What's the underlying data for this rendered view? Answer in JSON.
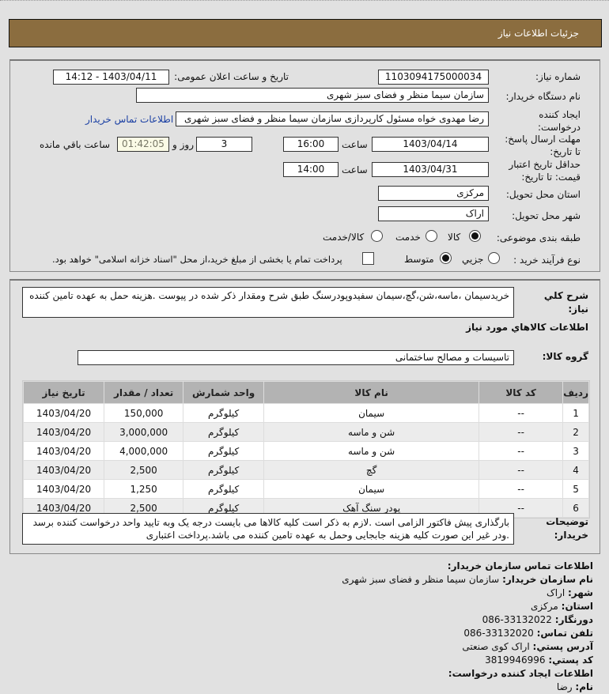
{
  "header": {
    "title": "جزئیات اطلاعات نیاز"
  },
  "form": {
    "need_number_label": "شماره نیاز:",
    "need_number": "1103094175000034",
    "announce_label": "تاریخ و ساعت اعلان عمومی:",
    "announce": "1403/04/11 - 14:12",
    "buyer_label": "نام دستگاه خریدار:",
    "buyer": "سازمان سیما منظر و فضای سبز شهری",
    "creator_label_1": "ایجاد کننده",
    "creator_label_2": "درخواست:",
    "creator": "رضا مهدوی خواه مسئول کارپردازی سازمان سیما منظر و فضای سبز شهری",
    "contact_link": "اطلاعات تماس خریدار",
    "deadline_label_1": "مهلت ارسال پاسخ:",
    "deadline_label_2": "تا تاریخ:",
    "deadline_date": "1403/04/14",
    "time_label": "ساعت",
    "deadline_time": "16:00",
    "days": "3",
    "days_label": "روز و",
    "remaining": "01:42:05",
    "remaining_label": "ساعت باقي مانده",
    "validity_label_1": "حداقل تاریخ اعتبار",
    "validity_label_2": "قیمت: تا تاریخ:",
    "validity_date": "1403/04/31",
    "validity_time": "14:00",
    "province_label": "استان محل تحویل:",
    "province": "مرکزی",
    "city_label": "شهر محل تحویل:",
    "city": "اراک",
    "category_label": "طبقه بندی موضوعی:",
    "category_options": [
      "کالا",
      "خدمت",
      "کالا/خدمت"
    ],
    "category_selected": "کالا",
    "process_label": "نوع فرآیند خرید :",
    "process_options": [
      "جزیي",
      "متوسط"
    ],
    "process_selected": "متوسط",
    "treasury_note": "پرداخت تمام یا بخشی از مبلغ خرید،از محل \"اسناد خزانه اسلامی\" خواهد بود.",
    "treasury_checked": false
  },
  "details": {
    "desc_label_1": "شرح کلي",
    "desc_label_2": "نیاز:",
    "desc": "خریدسیمان ،ماسه،شن،گچ،سیمان سفیدوپودرسنگ طبق شرح ومقدار ذکر شده در پیوست .هزینه حمل به عهده تامین کننده",
    "goods_title": "اطلاعات کالاهاي مورد نیاز",
    "group_label": "گروه کالا:",
    "group": "تاسیسات و مصالح ساختمانی",
    "table": {
      "headers": [
        "ردیف",
        "کد کالا",
        "نام کالا",
        "واحد شمارش",
        "تعداد / مقدار",
        "تاریخ نیاز"
      ],
      "rows": [
        [
          "1",
          "--",
          "سیمان",
          "کیلوگرم",
          "150,000",
          "1403/04/20"
        ],
        [
          "2",
          "--",
          "شن و ماسه",
          "کیلوگرم",
          "3,000,000",
          "1403/04/20"
        ],
        [
          "3",
          "--",
          "شن و ماسه",
          "کیلوگرم",
          "4,000,000",
          "1403/04/20"
        ],
        [
          "4",
          "--",
          "گچ",
          "کیلوگرم",
          "2,500",
          "1403/04/20"
        ],
        [
          "5",
          "--",
          "سیمان",
          "کیلوگرم",
          "1,250",
          "1403/04/20"
        ],
        [
          "6",
          "--",
          "پودر سنگ آهک",
          "کیلوگرم",
          "2,500",
          "1403/04/20"
        ]
      ]
    },
    "notes_label_1": "توضیحات",
    "notes_label_2": "خریدار:",
    "notes": "بارگذاری پیش فاکتور الزامی است .لازم به ذکر است کلیه کالاها می بایست درجه یک وبه تایید واحد درخواست کننده برسد .ودر غیر این صورت کلیه هزینه جابجایی وحمل به عهده تامین کننده می باشد.پرداخت اعتباری"
  },
  "contact": {
    "title": "اطلاعات تماس سازمان خریدار:",
    "lines": [
      {
        "k": "نام سازمان خریدار:",
        "v": "سازمان سیما منظر و فضای سبز شهری"
      },
      {
        "k": "شهر:",
        "v": "اراک"
      },
      {
        "k": "استان:",
        "v": "مرکزی"
      },
      {
        "k": "دورنگار:",
        "v": "33132022-086"
      },
      {
        "k": "تلفن تماس:",
        "v": "33132020-086"
      },
      {
        "k": "آدرس پستي:",
        "v": "اراک کوی صنعتی"
      },
      {
        "k": "کد پستي:",
        "v": "3819946996"
      }
    ],
    "creator_title": "اطلاعات ایجاد کننده درخواست:",
    "name_label": "نام:",
    "name": "رضا"
  }
}
